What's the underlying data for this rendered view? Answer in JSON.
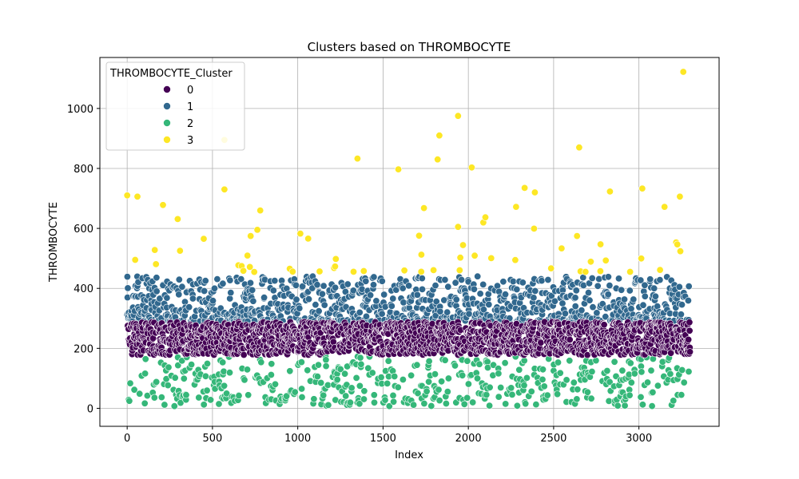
{
  "chart_data": {
    "type": "scatter",
    "title": "Clusters based on THROMBOCYTE",
    "xlabel": "Index",
    "ylabel": "THROMBOCYTE",
    "xlim": [
      -160,
      3470
    ],
    "ylim": [
      -60,
      1170
    ],
    "xticks": [
      0,
      500,
      1000,
      1500,
      2000,
      2500,
      3000
    ],
    "yticks": [
      0,
      200,
      400,
      600,
      800,
      1000
    ],
    "grid": true,
    "legend": {
      "title": "THROMBOCYTE_Cluster",
      "placement": "top-left",
      "entries": [
        "0",
        "1",
        "2",
        "3"
      ]
    },
    "n_points": 3300,
    "series": [
      {
        "name": "0",
        "color": "#440154",
        "y_range": [
          175,
          290
        ]
      },
      {
        "name": "1",
        "color": "#31688e",
        "y_range": [
          290,
          450
        ]
      },
      {
        "name": "2",
        "color": "#35b779",
        "y_range": [
          5,
          175
        ]
      },
      {
        "name": "3",
        "color": "#fde725",
        "y_range": [
          450,
          1125
        ],
        "notable_points": [
          [
            0,
            710
          ],
          [
            60,
            706
          ],
          [
            210,
            678
          ],
          [
            570,
            730
          ],
          [
            570,
            895
          ],
          [
            780,
            660
          ],
          [
            1350,
            833
          ],
          [
            1590,
            797
          ],
          [
            1740,
            668
          ],
          [
            1820,
            830
          ],
          [
            1830,
            910
          ],
          [
            1940,
            975
          ],
          [
            1940,
            605
          ],
          [
            2020,
            803
          ],
          [
            2100,
            637
          ],
          [
            2280,
            672
          ],
          [
            2330,
            735
          ],
          [
            2390,
            720
          ],
          [
            2650,
            870
          ],
          [
            2830,
            723
          ],
          [
            3020,
            733
          ],
          [
            3150,
            672
          ],
          [
            3240,
            706
          ],
          [
            3260,
            1122
          ]
        ]
      }
    ]
  }
}
